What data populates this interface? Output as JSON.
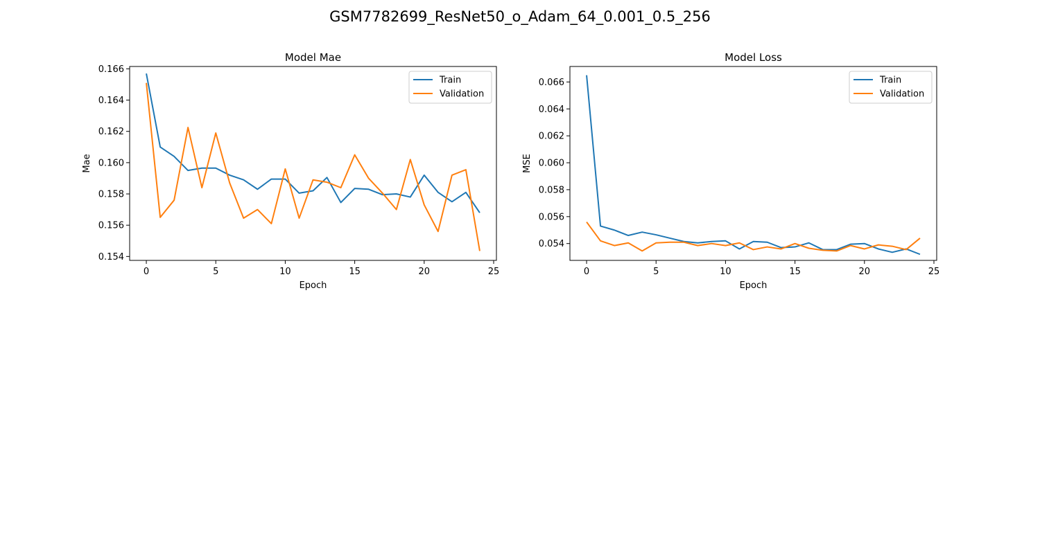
{
  "figure": {
    "title": "GSM7782699_ResNet50_o_Adam_64_0.001_0.5_256"
  },
  "colors": {
    "train": "#1f77b4",
    "validation": "#ff7f0e"
  },
  "chart_data": [
    {
      "type": "line",
      "title": "Model Mae",
      "xlabel": "Epoch",
      "ylabel": "Mae",
      "xlim": [
        -1.2,
        25.2
      ],
      "ylim": [
        0.15375,
        0.16615
      ],
      "xticks": [
        0,
        5,
        10,
        15,
        20,
        25
      ],
      "yticks": [
        0.154,
        0.156,
        0.158,
        0.16,
        0.162,
        0.164,
        0.166
      ],
      "ytick_decimals": 3,
      "legend": "top-right",
      "grid": false,
      "x": [
        0,
        1,
        2,
        3,
        4,
        5,
        6,
        7,
        8,
        9,
        10,
        11,
        12,
        13,
        14,
        15,
        16,
        17,
        18,
        19,
        20,
        21,
        22,
        23,
        24
      ],
      "series": [
        {
          "name": "Train",
          "values": [
            0.1657,
            0.161,
            0.1604,
            0.1595,
            0.15965,
            0.15965,
            0.1592,
            0.1589,
            0.1583,
            0.15895,
            0.15895,
            0.15805,
            0.1582,
            0.15905,
            0.15745,
            0.15835,
            0.1583,
            0.15795,
            0.158,
            0.1578,
            0.1592,
            0.1581,
            0.1575,
            0.1581,
            0.1568
          ]
        },
        {
          "name": "Validation",
          "values": [
            0.1651,
            0.1565,
            0.1576,
            0.16225,
            0.1584,
            0.1619,
            0.1587,
            0.15645,
            0.157,
            0.1561,
            0.1596,
            0.15645,
            0.1589,
            0.15875,
            0.1584,
            0.1605,
            0.159,
            0.15805,
            0.157,
            0.1602,
            0.1573,
            0.1556,
            0.1592,
            0.15955,
            0.15435
          ]
        }
      ]
    },
    {
      "type": "line",
      "title": "Model Loss",
      "xlabel": "Epoch",
      "ylabel": "MSE",
      "xlim": [
        -1.2,
        25.2
      ],
      "ylim": [
        0.05275,
        0.06715
      ],
      "xticks": [
        0,
        5,
        10,
        15,
        20,
        25
      ],
      "yticks": [
        0.054,
        0.056,
        0.058,
        0.06,
        0.062,
        0.064,
        0.066
      ],
      "ytick_decimals": 3,
      "legend": "top-right",
      "grid": false,
      "x": [
        0,
        1,
        2,
        3,
        4,
        5,
        6,
        7,
        8,
        9,
        10,
        11,
        12,
        13,
        14,
        15,
        16,
        17,
        18,
        19,
        20,
        21,
        22,
        23,
        24
      ],
      "series": [
        {
          "name": "Train",
          "values": [
            0.0665,
            0.0553,
            0.055,
            0.0546,
            0.05485,
            0.05465,
            0.0544,
            0.05415,
            0.05405,
            0.05415,
            0.0542,
            0.0536,
            0.05415,
            0.0541,
            0.0537,
            0.05375,
            0.05405,
            0.05355,
            0.05355,
            0.05395,
            0.054,
            0.0536,
            0.05335,
            0.0536,
            0.0532
          ]
        },
        {
          "name": "Validation",
          "values": [
            0.0556,
            0.0542,
            0.05385,
            0.05405,
            0.05345,
            0.05405,
            0.0541,
            0.0541,
            0.05385,
            0.054,
            0.05385,
            0.05405,
            0.05355,
            0.05375,
            0.0536,
            0.054,
            0.05365,
            0.0535,
            0.05345,
            0.05385,
            0.0536,
            0.0539,
            0.0538,
            0.05355,
            0.0544
          ]
        }
      ]
    }
  ]
}
